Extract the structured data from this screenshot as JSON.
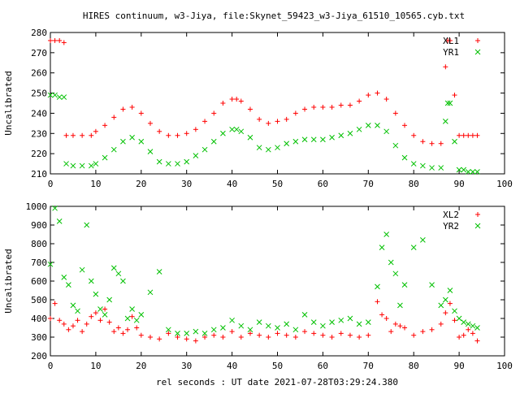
{
  "chart_data": {
    "title": "HIRES continuum, w3-Jiya, file:Skynet_59423_w3-Jiya_61510_10565.cyb.txt",
    "xlabel": "rel seconds : UT date 2021-07-28T03:29:24.380",
    "panels": [
      {
        "type": "scatter",
        "ylabel": "Uncalibrated",
        "xlim": [
          0,
          100
        ],
        "ylim": [
          210,
          280
        ],
        "xticks": [
          "0",
          "10",
          "20",
          "30",
          "40",
          "50",
          "60",
          "70",
          "80",
          "90",
          "100"
        ],
        "yticks": [
          "210",
          "220",
          "230",
          "240",
          "250",
          "260",
          "270",
          "280"
        ],
        "legend_position": "top-right",
        "series": [
          {
            "name": "XL1",
            "marker": "plus",
            "color": "#ff0000",
            "x": [
              0.0,
              1.0,
              2.0,
              3.0,
              3.5,
              5.0,
              7.0,
              9.0,
              10.0,
              12.0,
              14.0,
              16.0,
              18.0,
              20.0,
              22.0,
              24.0,
              26.0,
              28.0,
              30.0,
              32.0,
              34.0,
              36.0,
              38.0,
              40.0,
              41.0,
              42.0,
              44.0,
              46.0,
              48.0,
              50.0,
              52.0,
              54.0,
              56.0,
              58.0,
              60.0,
              62.0,
              64.0,
              66.0,
              68.0,
              70.0,
              72.0,
              74.0,
              76.0,
              78.0,
              80.0,
              82.0,
              84.0,
              86.0,
              87.0,
              87.5,
              88.0,
              89.0,
              90.0,
              91.0,
              92.0,
              93.0,
              94.0
            ],
            "y": [
              276,
              276,
              276,
              275,
              229,
              229,
              229,
              229,
              231,
              234,
              238,
              242,
              243,
              240,
              235,
              231,
              229,
              229,
              230,
              232,
              236,
              240,
              245,
              247,
              247,
              246,
              242,
              237,
              235,
              236,
              237,
              240,
              242,
              243,
              243,
              243,
              244,
              244,
              246,
              249,
              250,
              247,
              240,
              234,
              229,
              226,
              225,
              225,
              263,
              276,
              276,
              249,
              229,
              229,
              229,
              229,
              229
            ]
          },
          {
            "name": "YR1",
            "marker": "cross",
            "color": "#00c000",
            "x": [
              0.0,
              1.0,
              2.0,
              3.0,
              3.5,
              5.0,
              7.0,
              9.0,
              10.0,
              12.0,
              14.0,
              16.0,
              18.0,
              20.0,
              22.0,
              24.0,
              26.0,
              28.0,
              30.0,
              32.0,
              34.0,
              36.0,
              38.0,
              40.0,
              41.0,
              42.0,
              44.0,
              46.0,
              48.0,
              50.0,
              52.0,
              54.0,
              56.0,
              58.0,
              60.0,
              62.0,
              64.0,
              66.0,
              68.0,
              70.0,
              72.0,
              74.0,
              76.0,
              78.0,
              80.0,
              82.0,
              84.0,
              86.0,
              87.0,
              87.5,
              88.0,
              89.0,
              90.0,
              91.0,
              92.0,
              93.0,
              94.0
            ],
            "y": [
              249,
              249,
              248,
              248,
              215,
              214,
              214,
              214,
              215,
              218,
              222,
              226,
              228,
              226,
              221,
              216,
              215,
              215,
              216,
              219,
              222,
              226,
              230,
              232,
              232,
              231,
              228,
              223,
              222,
              223,
              225,
              226,
              227,
              227,
              227,
              228,
              229,
              230,
              232,
              234,
              234,
              231,
              224,
              218,
              215,
              214,
              213,
              213,
              236,
              245,
              245,
              226,
              212,
              212,
              211,
              211,
              211
            ]
          }
        ]
      },
      {
        "type": "scatter",
        "ylabel": "Uncalibrated",
        "xlim": [
          0,
          100
        ],
        "ylim": [
          200,
          1000
        ],
        "xticks": [
          "0",
          "10",
          "20",
          "30",
          "40",
          "50",
          "60",
          "70",
          "80",
          "90",
          "100"
        ],
        "yticks": [
          "200",
          "300",
          "400",
          "500",
          "600",
          "700",
          "800",
          "900",
          "1000"
        ],
        "legend_position": "top-right",
        "series": [
          {
            "name": "XL2",
            "marker": "plus",
            "color": "#ff0000",
            "x": [
              0,
              1,
              2,
              3,
              4,
              5,
              6,
              7,
              8,
              9,
              10,
              11,
              12,
              13,
              14,
              15,
              16,
              17,
              18,
              19,
              20,
              22,
              24,
              26,
              28,
              30,
              32,
              34,
              36,
              38,
              40,
              42,
              44,
              46,
              48,
              50,
              52,
              54,
              56,
              58,
              60,
              62,
              64,
              66,
              68,
              70,
              72,
              73,
              74,
              75,
              76,
              77,
              78,
              80,
              82,
              84,
              86,
              87,
              88,
              89,
              90,
              91,
              92,
              93,
              94
            ],
            "y": [
              400,
              480,
              390,
              370,
              340,
              360,
              390,
              330,
              370,
              410,
              430,
              390,
              450,
              380,
              330,
              350,
              320,
              340,
              410,
              350,
              310,
              300,
              290,
              320,
              300,
              290,
              280,
              300,
              310,
              300,
              330,
              300,
              320,
              310,
              300,
              320,
              310,
              300,
              330,
              320,
              310,
              300,
              320,
              310,
              300,
              310,
              490,
              420,
              400,
              330,
              370,
              360,
              350,
              310,
              330,
              340,
              370,
              430,
              480,
              390,
              300,
              310,
              340,
              320,
              280
            ]
          },
          {
            "name": "YR2",
            "marker": "cross",
            "color": "#00c000",
            "x": [
              0,
              1,
              2,
              3,
              4,
              5,
              6,
              7,
              8,
              9,
              10,
              11,
              12,
              13,
              14,
              15,
              16,
              17,
              18,
              19,
              20,
              22,
              24,
              26,
              28,
              30,
              32,
              34,
              36,
              38,
              40,
              42,
              44,
              46,
              48,
              50,
              52,
              54,
              56,
              58,
              60,
              62,
              64,
              66,
              68,
              70,
              72,
              73,
              74,
              75,
              76,
              77,
              78,
              80,
              82,
              84,
              86,
              87,
              88,
              89,
              90,
              91,
              92,
              93,
              94
            ],
            "y": [
              690,
              990,
              920,
              620,
              580,
              470,
              440,
              660,
              900,
              600,
              530,
              450,
              420,
              500,
              670,
              640,
              600,
              400,
              450,
              390,
              420,
              540,
              650,
              340,
              320,
              320,
              330,
              320,
              340,
              350,
              390,
              360,
              340,
              380,
              360,
              350,
              370,
              340,
              420,
              380,
              360,
              380,
              390,
              400,
              370,
              380,
              570,
              780,
              850,
              700,
              640,
              470,
              580,
              780,
              820,
              580,
              470,
              500,
              550,
              440,
              400,
              380,
              370,
              360,
              350
            ]
          }
        ]
      }
    ]
  }
}
